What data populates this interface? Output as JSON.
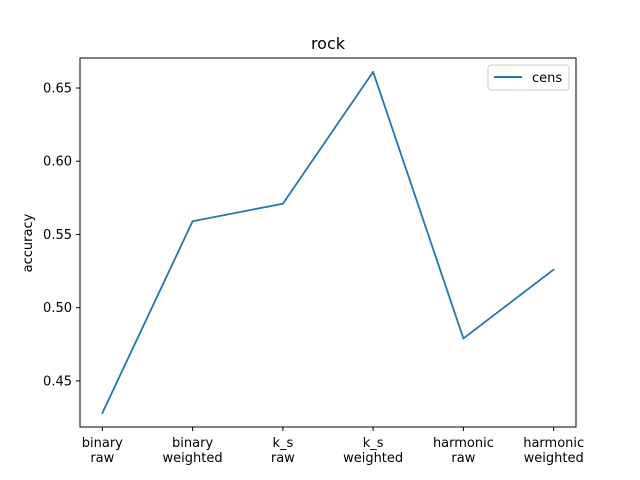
{
  "chart_data": {
    "type": "line",
    "title": "rock",
    "xlabel": "",
    "ylabel": "accuracy",
    "categories": [
      [
        "binary",
        "raw"
      ],
      [
        "binary",
        "weighted"
      ],
      [
        "k_s",
        "raw"
      ],
      [
        "k_s",
        "weighted"
      ],
      [
        "harmonic",
        "raw"
      ],
      [
        "harmonic",
        "weighted"
      ]
    ],
    "series": [
      {
        "name": "cens",
        "color": "#1f77b4",
        "values": [
          0.428,
          0.559,
          0.571,
          0.661,
          0.479,
          0.526
        ]
      }
    ],
    "yticks": [
      "0.45",
      "0.50",
      "0.55",
      "0.60",
      "0.65"
    ],
    "ylim": [
      0.4185,
      0.6705
    ],
    "grid": false,
    "legend_position": "top-right"
  }
}
